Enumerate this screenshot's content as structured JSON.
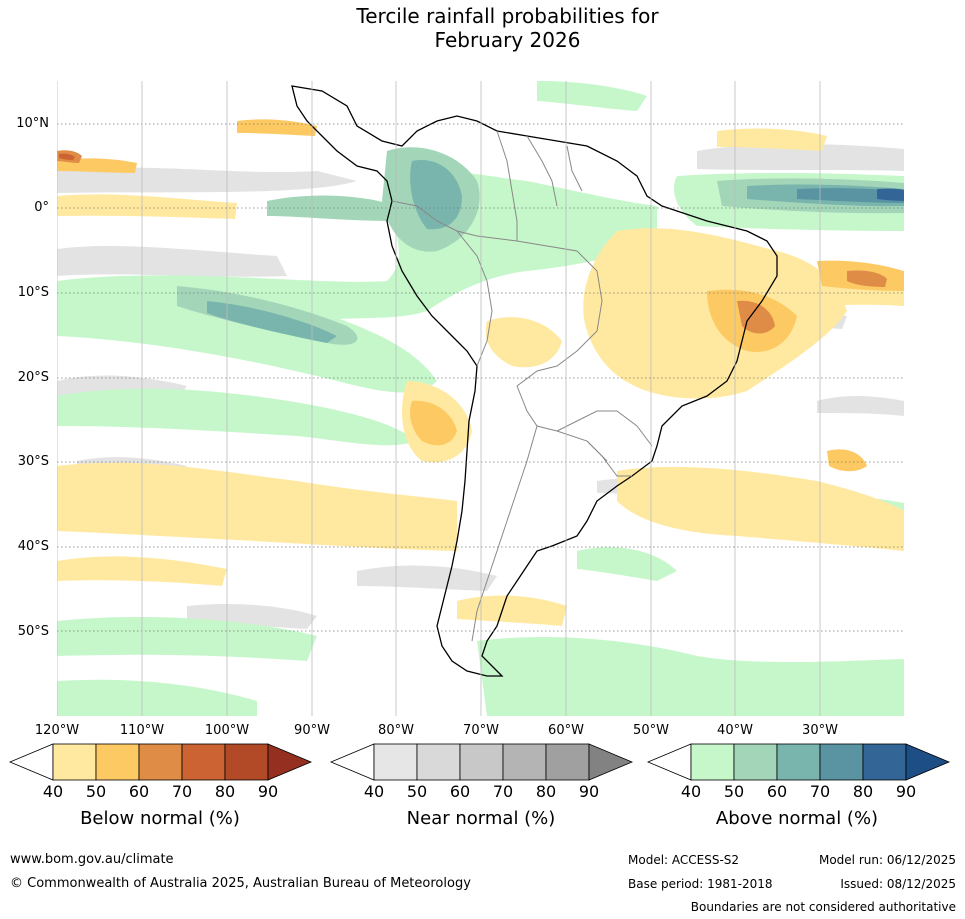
{
  "title_line1": "Tercile rainfall probabilities for",
  "title_line2": "February 2026",
  "map": {
    "lat_labels": [
      "10°N",
      "0°",
      "10°S",
      "20°S",
      "30°S",
      "40°S",
      "50°S"
    ],
    "lon_labels": [
      "120°W",
      "110°W",
      "100°W",
      "90°W",
      "80°W",
      "70°W",
      "60°W",
      "50°W",
      "40°W",
      "30°W"
    ]
  },
  "colorbars": [
    {
      "title": "Below normal (%)",
      "ticks": [
        "40",
        "50",
        "60",
        "70",
        "80",
        "90"
      ],
      "colors": [
        "#ffffff",
        "#ffe9a1",
        "#fdc963",
        "#df8c46",
        "#cb6432",
        "#b24a28",
        "#953020"
      ]
    },
    {
      "title": "Near normal (%)",
      "ticks": [
        "40",
        "50",
        "60",
        "70",
        "80",
        "90"
      ],
      "colors": [
        "#ffffff",
        "#e6e6e6",
        "#d9d9d9",
        "#c8c8c8",
        "#b4b4b4",
        "#a0a0a0",
        "#828282"
      ]
    },
    {
      "title": "Above normal (%)",
      "ticks": [
        "40",
        "50",
        "60",
        "70",
        "80",
        "90"
      ],
      "colors": [
        "#ffffff",
        "#c6f7cb",
        "#a3d6b9",
        "#7ab5ad",
        "#5a94a3",
        "#336697",
        "#1d4e86"
      ]
    }
  ],
  "footer": {
    "url": "www.bom.gov.au/climate",
    "copyright": "© Commonwealth of Australia 2025, Australian Bureau of Meteorology",
    "model": "Model: ACCESS-S2",
    "model_run": "Model run: 06/12/2025",
    "base_period": "Base period: 1981-2018",
    "issued": "Issued: 08/12/2025",
    "disclaimer": "Boundaries are not considered authoritative"
  }
}
